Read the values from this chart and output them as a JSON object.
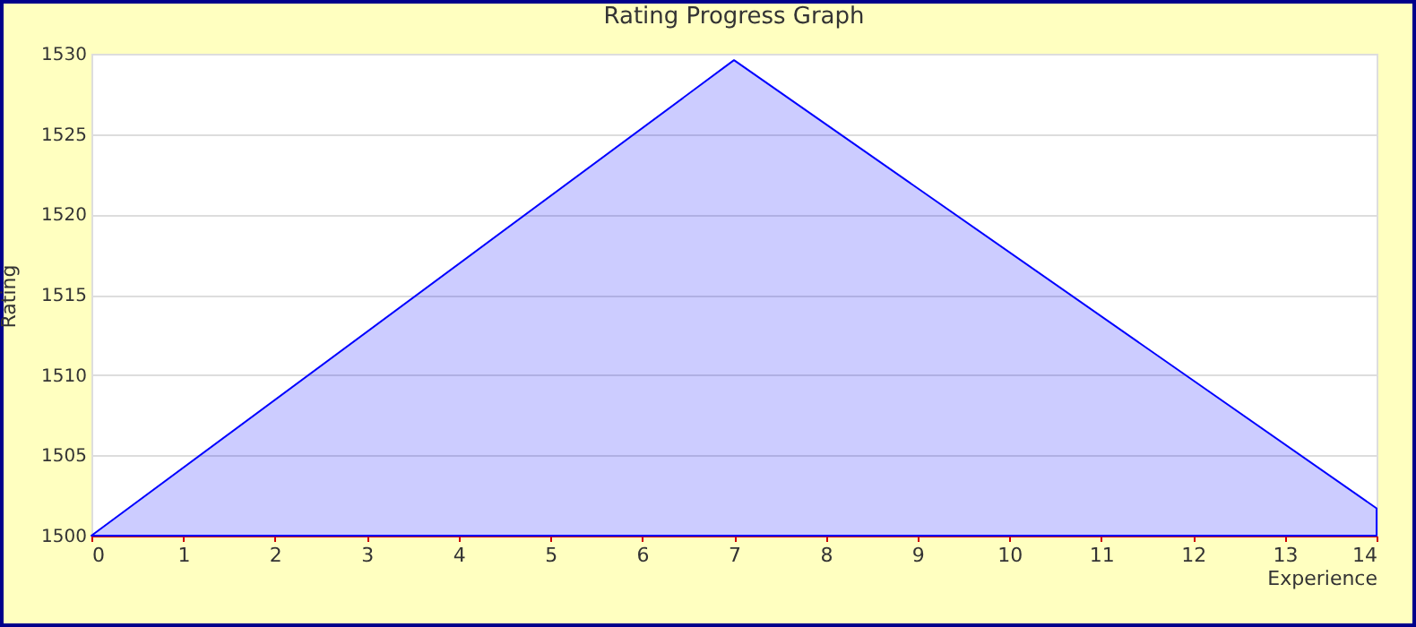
{
  "chart_data": {
    "type": "area",
    "title": "Rating Progress Graph",
    "xlabel": "Experience",
    "ylabel": "Rating",
    "x": [
      0,
      7,
      14
    ],
    "series": [
      {
        "color": "#0000ff",
        "values": [
          1500,
          1529.6,
          1501.7
        ]
      }
    ],
    "xlim": [
      0,
      14
    ],
    "xticks": [
      0,
      1,
      2,
      3,
      4,
      5,
      6,
      7,
      8,
      9,
      10,
      11,
      12,
      13,
      14
    ],
    "ylim": [
      1500,
      1530
    ],
    "yticks": [
      1500,
      1505,
      1510,
      1515,
      1520,
      1525,
      1530
    ],
    "grid": "y",
    "legend": false
  }
}
